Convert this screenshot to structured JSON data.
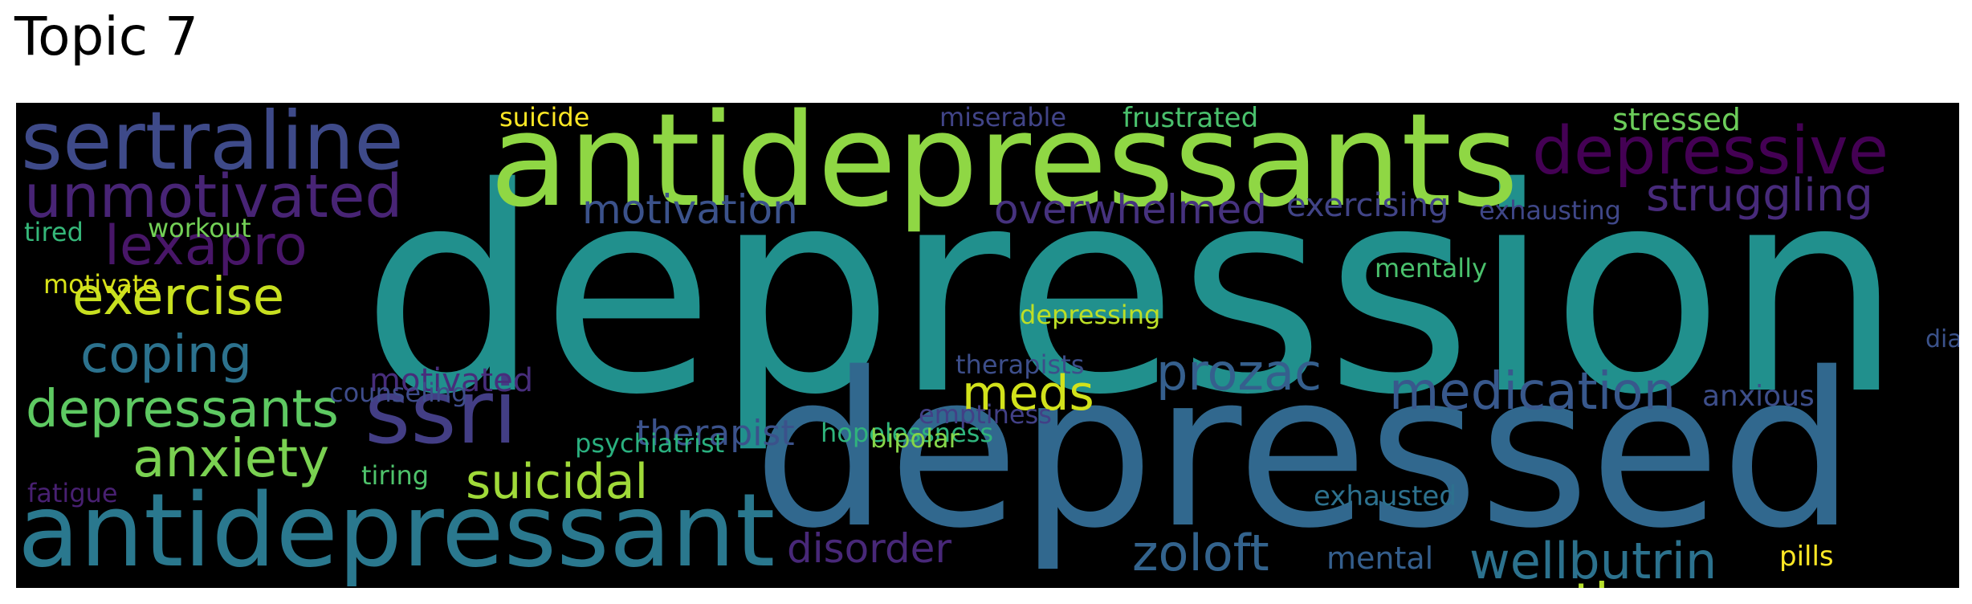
{
  "title": "Topic 7",
  "words": [
    {
      "id": "depression",
      "text": "depression",
      "color": "#21908d"
    },
    {
      "id": "depressed",
      "text": "depressed",
      "color": "#31688e"
    },
    {
      "id": "antidepressants",
      "text": "antidepressants",
      "color": "#8fd744"
    },
    {
      "id": "antidepressant",
      "text": "antidepressant",
      "color": "#2a788e"
    },
    {
      "id": "sertraline",
      "text": "sertraline",
      "color": "#3e4a89"
    },
    {
      "id": "depressive",
      "text": "depressive",
      "color": "#440154"
    },
    {
      "id": "unmotivated",
      "text": "unmotivated",
      "color": "#482475"
    },
    {
      "id": "ssri",
      "text": "ssri",
      "color": "#433e85"
    },
    {
      "id": "lexapro",
      "text": "lexapro",
      "color": "#481668"
    },
    {
      "id": "exercise",
      "text": "exercise",
      "color": "#c8e020"
    },
    {
      "id": "coping",
      "text": "coping",
      "color": "#2c728e"
    },
    {
      "id": "depressants",
      "text": "depressants",
      "color": "#5ec962"
    },
    {
      "id": "anxiety",
      "text": "anxiety",
      "color": "#7ad151"
    },
    {
      "id": "struggling",
      "text": "struggling",
      "color": "#472a7a"
    },
    {
      "id": "motivation",
      "text": "motivation",
      "color": "#3b528b"
    },
    {
      "id": "overwhelmed",
      "text": "overwhelmed",
      "color": "#46327e"
    },
    {
      "id": "prozac",
      "text": "prozac",
      "color": "#355f8d"
    },
    {
      "id": "medication",
      "text": "medication",
      "color": "#38588c"
    },
    {
      "id": "therapy",
      "text": "therapy",
      "color": "#b5de2b"
    },
    {
      "id": "suicidal",
      "text": "suicidal",
      "color": "#a0da39"
    },
    {
      "id": "meds",
      "text": "meds",
      "color": "#d2e21b"
    },
    {
      "id": "zoloft",
      "text": "zoloft",
      "color": "#33638d"
    },
    {
      "id": "wellbutrin",
      "text": "wellbutrin",
      "color": "#2c728e"
    },
    {
      "id": "disorder",
      "text": "disorder",
      "color": "#482878"
    },
    {
      "id": "motivated",
      "text": "motivated",
      "color": "#472d7b"
    },
    {
      "id": "therapist",
      "text": "therapist",
      "color": "#3b528b"
    },
    {
      "id": "exercising",
      "text": "exercising",
      "color": "#414487"
    },
    {
      "id": "exhausting",
      "text": "exhausting",
      "color": "#3f4788"
    },
    {
      "id": "suicide",
      "text": "suicide",
      "color": "#fde725"
    },
    {
      "id": "miserable",
      "text": "miserable",
      "color": "#414487"
    },
    {
      "id": "frustrated",
      "text": "frustrated",
      "color": "#4ac16d"
    },
    {
      "id": "stressed",
      "text": "stressed",
      "color": "#6ccd5a"
    },
    {
      "id": "tired",
      "text": "tired",
      "color": "#35b779"
    },
    {
      "id": "workout",
      "text": "workout",
      "color": "#73d056"
    },
    {
      "id": "motivate",
      "text": "motivate",
      "color": "#d8e219"
    },
    {
      "id": "counseling",
      "text": "counseling",
      "color": "#3e4c8a"
    },
    {
      "id": "hopelessness",
      "text": "hopelessness",
      "color": "#2fb47c"
    },
    {
      "id": "bipolar",
      "text": "bipolar",
      "color": "#86d549"
    },
    {
      "id": "emptiness",
      "text": "emptiness",
      "color": "#424086"
    },
    {
      "id": "therapists",
      "text": "therapists",
      "color": "#3d4e8a"
    },
    {
      "id": "mentally",
      "text": "mentally",
      "color": "#4ac16d"
    },
    {
      "id": "depressing",
      "text": "depressing",
      "color": "#bddf26"
    },
    {
      "id": "diagnosed",
      "text": "diagnosed",
      "color": "#3b528b"
    },
    {
      "id": "anxious",
      "text": "anxious",
      "color": "#3d4e8a"
    },
    {
      "id": "psychiatrist",
      "text": "psychiatrist",
      "color": "#2ab07f"
    },
    {
      "id": "tiring",
      "text": "tiring",
      "color": "#4ec36b"
    },
    {
      "id": "fatigue",
      "text": "fatigue",
      "color": "#482071"
    },
    {
      "id": "exhausted",
      "text": "exhausted",
      "color": "#2d718e"
    },
    {
      "id": "mental",
      "text": "mental",
      "color": "#355f8d"
    },
    {
      "id": "pills",
      "text": "pills",
      "color": "#fde725"
    }
  ]
}
